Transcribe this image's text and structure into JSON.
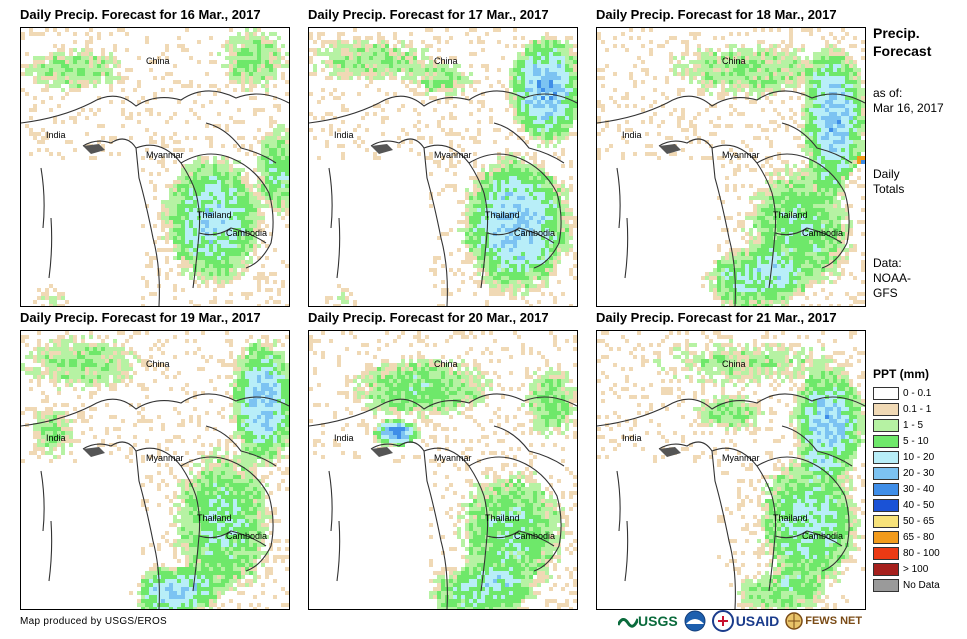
{
  "panels": [
    {
      "title": "Daily Precip. Forecast for 16 Mar., 2017"
    },
    {
      "title": "Daily Precip. Forecast for 17 Mar., 2017"
    },
    {
      "title": "Daily Precip. Forecast for 18 Mar., 2017"
    },
    {
      "title": "Daily Precip. Forecast for 19 Mar., 2017"
    },
    {
      "title": "Daily Precip. Forecast for 20 Mar., 2017"
    },
    {
      "title": "Daily Precip. Forecast for 21 Mar., 2017"
    }
  ],
  "map_labels": {
    "china": "China",
    "india": "India",
    "myanmar": "Myanmar",
    "thailand": "Thailand",
    "cambodia": "Cambodia"
  },
  "side": {
    "title_line1": "Precip.",
    "title_line2": "Forecast",
    "asof_line1": "as of:",
    "asof_line2": "Mar 16, 2017",
    "daily_line1": "Daily",
    "daily_line2": "Totals",
    "data_line1": "Data:",
    "data_line2": "NOAA-",
    "data_line3": "GFS"
  },
  "legend": {
    "title": "PPT (mm)",
    "items": [
      {
        "label": "0 - 0.1",
        "color": "#ffffff"
      },
      {
        "label": "0.1 - 1",
        "color": "#f0d9b5"
      },
      {
        "label": "1 - 5",
        "color": "#b6f2a3"
      },
      {
        "label": "5 - 10",
        "color": "#6ee86a"
      },
      {
        "label": "10 - 20",
        "color": "#b8eef8"
      },
      {
        "label": "20 - 30",
        "color": "#7cc3f2"
      },
      {
        "label": "30 - 40",
        "color": "#3f8ee8"
      },
      {
        "label": "40 - 50",
        "color": "#1a52d6"
      },
      {
        "label": "50 - 65",
        "color": "#f7e27a"
      },
      {
        "label": "65 - 80",
        "color": "#f29b1c"
      },
      {
        "label": "80 - 100",
        "color": "#ec3a14"
      },
      {
        "label": "> 100",
        "color": "#a6201d"
      },
      {
        "label": "No Data",
        "color": "#9a9a9a"
      }
    ]
  },
  "credit": "Map produced by USGS/EROS",
  "logos": {
    "usgs": "USGS",
    "usaid": "USAID",
    "fewsnet": "FEWS NET"
  }
}
